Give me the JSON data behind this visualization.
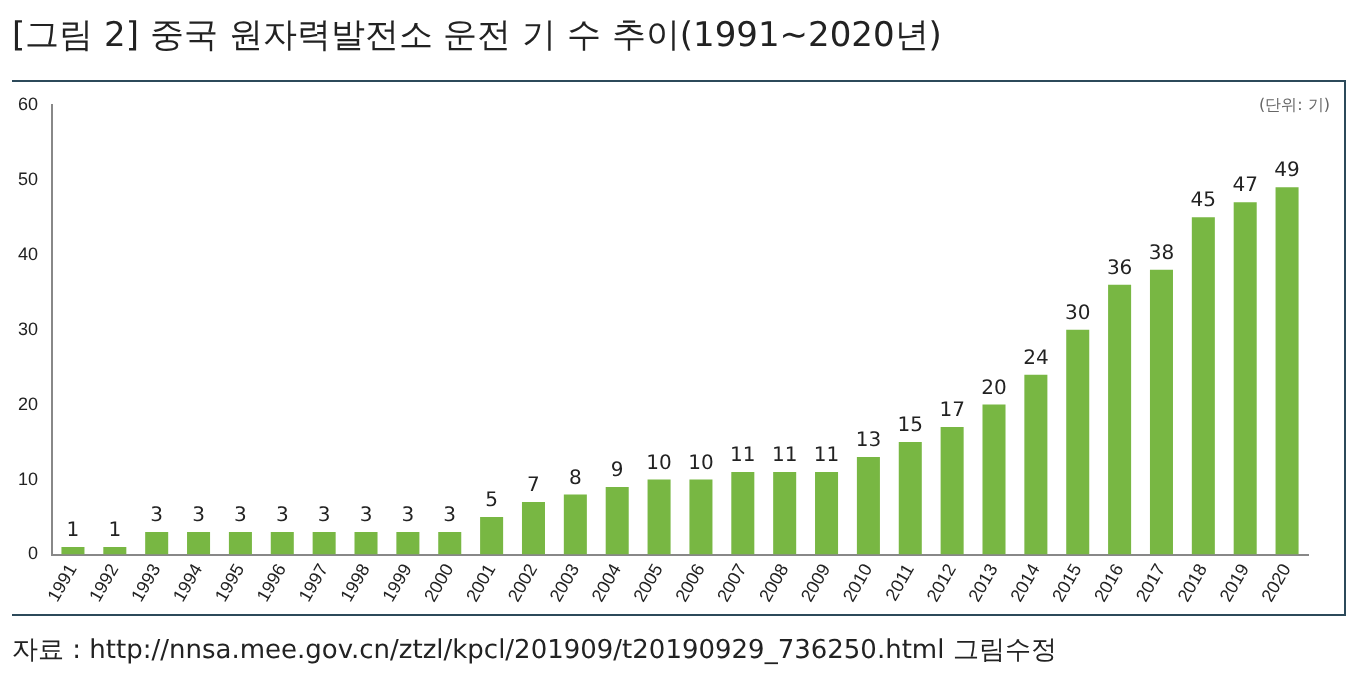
{
  "chart_data": {
    "type": "bar",
    "title": "[그림 2] 중국 원자력발전소 운전 기 수 추이(1991~2020년)",
    "categories": [
      "1991",
      "1992",
      "1993",
      "1994",
      "1995",
      "1996",
      "1997",
      "1998",
      "1999",
      "2000",
      "2001",
      "2002",
      "2003",
      "2004",
      "2005",
      "2006",
      "2007",
      "2008",
      "2009",
      "2010",
      "2011",
      "2012",
      "2013",
      "2014",
      "2015",
      "2016",
      "2017",
      "2018",
      "2019",
      "2020"
    ],
    "values": [
      1,
      1,
      3,
      3,
      3,
      3,
      3,
      3,
      3,
      3,
      5,
      7,
      8,
      9,
      10,
      10,
      11,
      11,
      11,
      13,
      15,
      17,
      20,
      24,
      30,
      36,
      38,
      45,
      47,
      49
    ],
    "color": "#78b743",
    "ylim": [
      0,
      60
    ],
    "yticks": [
      0,
      10,
      20,
      30,
      40,
      50,
      60
    ],
    "grid": false,
    "data_labels": true,
    "annotations": [
      "(단위: 기)",
      "자료 : http://nnsa.mee.gov.cn/ztzl/kpcl/201909/t20190929_736250.html 그림수정"
    ]
  }
}
